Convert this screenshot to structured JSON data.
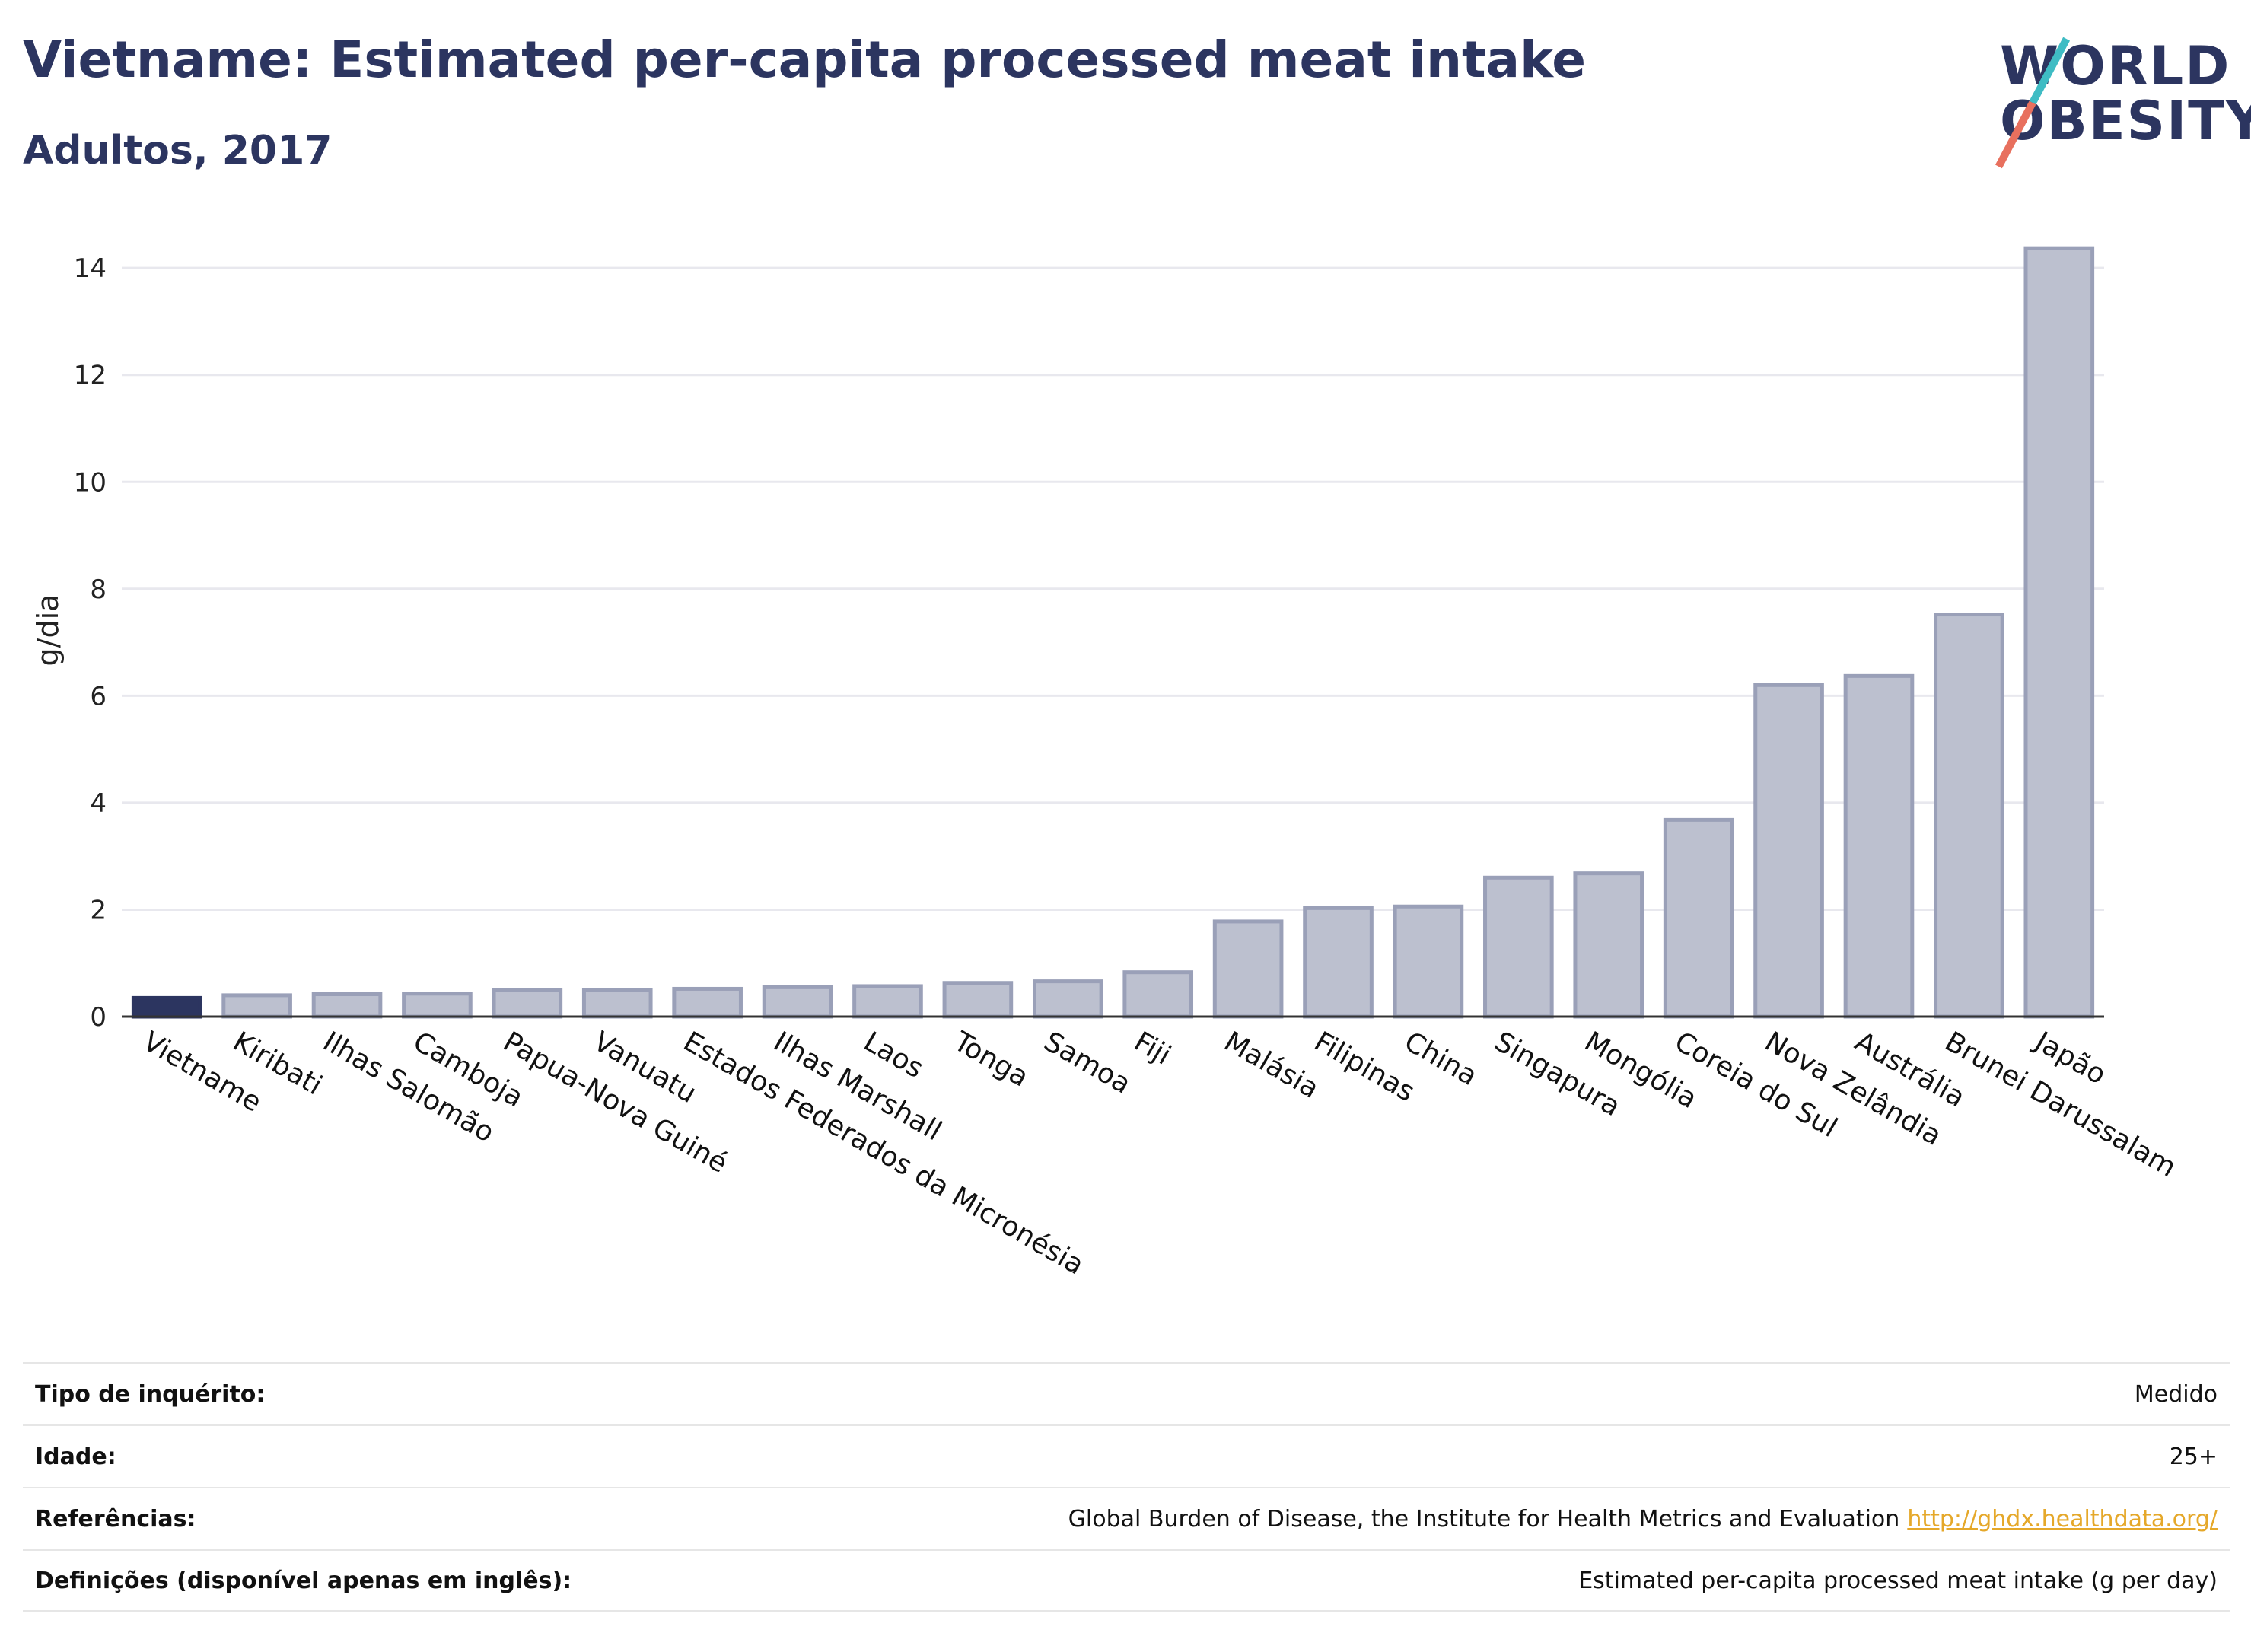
{
  "header": {
    "title": "Vietname: Estimated per-capita processed meat intake",
    "subtitle": "Adultos, 2017"
  },
  "logo": {
    "line1": "WORLD",
    "line2": "OBESITY"
  },
  "chart_data": {
    "type": "bar",
    "title": "Vietname: Estimated per-capita processed meat intake",
    "subtitle": "Adultos, 2017",
    "ylabel": "g/dia",
    "xlabel": "",
    "ylim": [
      0,
      14.6
    ],
    "yticks": [
      0,
      2,
      4,
      6,
      8,
      10,
      12,
      14
    ],
    "grid": true,
    "categories": [
      "Vietname",
      "Kiribati",
      "Ilhas Salomão",
      "Camboja",
      "Papua-Nova Guiné",
      "Vanuatu",
      "Estados Federados da Micronésia",
      "Ilhas Marshall",
      "Laos",
      "Tonga",
      "Samoa",
      "Fiji",
      "Malásia",
      "Filipinas",
      "China",
      "Singapura",
      "Mongólia",
      "Coreia do Sul",
      "Nova Zelândia",
      "Austrália",
      "Brunei Darussalam",
      "Japão"
    ],
    "values": [
      0.35,
      0.4,
      0.42,
      0.43,
      0.5,
      0.5,
      0.52,
      0.55,
      0.57,
      0.63,
      0.66,
      0.83,
      1.78,
      2.03,
      2.06,
      2.6,
      2.68,
      3.68,
      6.2,
      6.37,
      7.52,
      14.37
    ],
    "highlight": "Vietname",
    "colors": {
      "highlight": "#2c3560",
      "bar": "#bcc0cf",
      "bar_edge": "#9aa0b8",
      "grid": "#e8e8ee",
      "axis": "#333333"
    }
  },
  "meta": {
    "survey_type_label": "Tipo de inquérito:",
    "survey_type_value": "Medido",
    "age_label": "Idade:",
    "age_value": "25+",
    "references_label": "Referências:",
    "references_value": "Global Burden of Disease, the Institute for Health Metrics and Evaluation",
    "references_link": "http://ghdx.healthdata.org/",
    "definitions_label": "Definições (disponível apenas em inglês):",
    "definitions_value": "Estimated per-capita processed meat intake (g per day)"
  }
}
